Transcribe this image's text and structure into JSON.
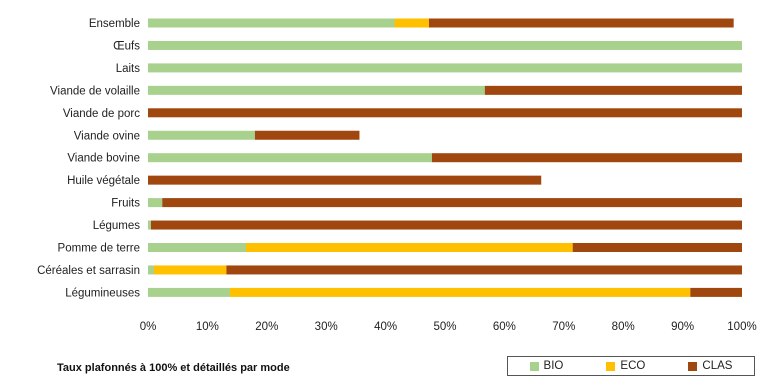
{
  "colors": {
    "BIO": "#a9d18e",
    "ECO": "#ffc000",
    "CLAS": "#a0470f"
  },
  "note": "Taux plafonnés à 100% et détaillés par mode",
  "legend": [
    {
      "key": "BIO",
      "label": "BIO"
    },
    {
      "key": "ECO",
      "label": "ECO"
    },
    {
      "key": "CLAS",
      "label": "CLAS"
    }
  ],
  "chart_data": {
    "type": "bar",
    "orientation": "horizontal",
    "stacked": true,
    "categories": [
      "Ensemble",
      "Œufs",
      "Laits",
      "Viande de volaille",
      "Viande de porc",
      "Viande ovine",
      "Viande bovine",
      "Huile végétale",
      "Fruits",
      "Légumes",
      "Pomme de terre",
      "Céréales et sarrasin",
      "Légumineuses"
    ],
    "series": [
      {
        "name": "BIO",
        "values": [
          41.5,
          100,
          100,
          56.7,
          0,
          18.0,
          47.8,
          0,
          2.4,
          0.5,
          16.5,
          1.0,
          13.8
        ]
      },
      {
        "name": "ECO",
        "values": [
          5.8,
          0,
          0,
          0,
          0,
          0,
          0,
          0,
          0,
          0,
          55.0,
          12.2,
          77.5
        ]
      },
      {
        "name": "CLAS",
        "values": [
          51.3,
          0,
          0,
          43.3,
          100,
          17.6,
          52.2,
          66.2,
          97.6,
          99.5,
          28.5,
          86.8,
          8.7
        ]
      }
    ],
    "xticks": [
      "0%",
      "10%",
      "20%",
      "30%",
      "40%",
      "50%",
      "60%",
      "70%",
      "80%",
      "90%",
      "100%"
    ],
    "xlim": [
      0,
      100
    ],
    "xlabel": "",
    "ylabel": "",
    "grid": false,
    "legend_position": "bottom-right"
  }
}
